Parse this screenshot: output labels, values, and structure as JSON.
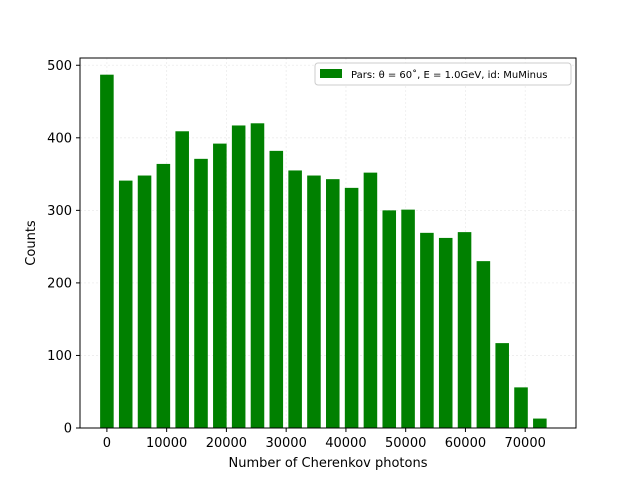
{
  "chart_data": {
    "type": "bar",
    "xlabel": "Number of Cherenkov photons",
    "ylabel": "Counts",
    "xlim": [
      -4500,
      78500
    ],
    "ylim": [
      0,
      510
    ],
    "x_ticks": [
      0,
      10000,
      20000,
      30000,
      40000,
      50000,
      60000,
      70000
    ],
    "y_ticks": [
      0,
      100,
      200,
      300,
      400,
      500
    ],
    "grid": true,
    "legend_position": "top-right",
    "bar_color": "#008000",
    "bin_width": 3150,
    "bar_width_fraction": 0.72,
    "series": [
      {
        "name": "Pars: θ = 60˚, E = 1.0GeV, id: MuMinus",
        "x": [
          0,
          3150,
          6300,
          9450,
          12600,
          15750,
          18900,
          22050,
          25200,
          28350,
          31500,
          34650,
          37800,
          40950,
          44100,
          47250,
          50400,
          53550,
          56700,
          59850,
          63000,
          66150,
          69300,
          72450,
          75600
        ],
        "values": [
          487,
          341,
          348,
          364,
          409,
          371,
          392,
          417,
          420,
          382,
          355,
          348,
          343,
          331,
          352,
          300,
          301,
          269,
          262,
          270,
          230,
          117,
          56,
          13,
          0
        ]
      }
    ]
  }
}
